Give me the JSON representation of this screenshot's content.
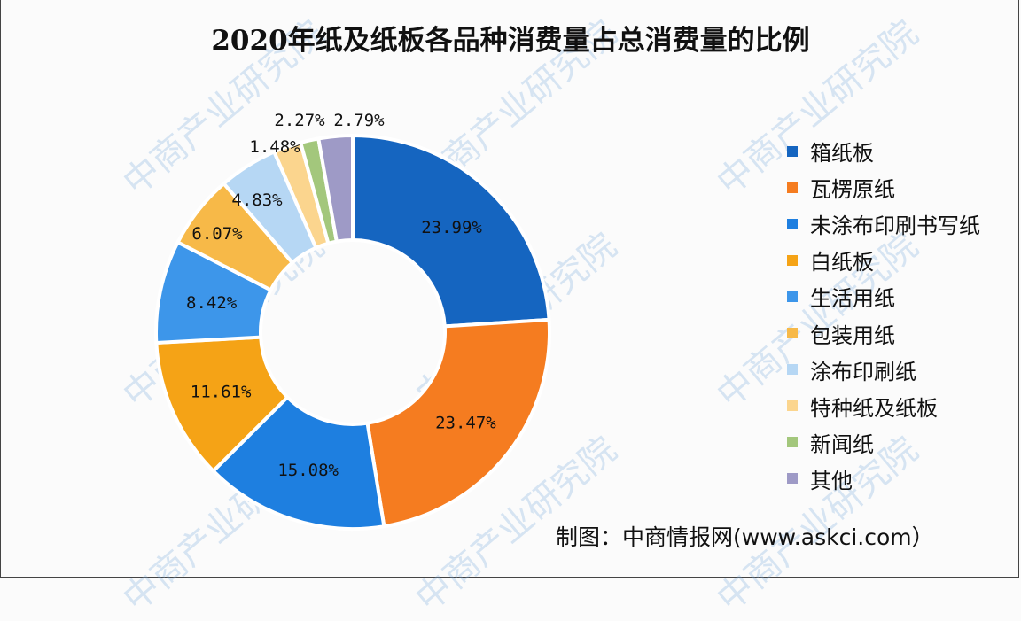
{
  "title": "2020年纸及纸板各品种消费量占总消费量的比例",
  "source": "制图：中商情报网(www.askci.com）",
  "watermark": "中商产业研究院",
  "chart_data": {
    "type": "pie",
    "variant": "donut",
    "title": "2020年纸及纸板各品种消费量占总消费量的比例",
    "start_angle": "12 o'clock, clockwise",
    "legend_position": "right",
    "categories": [
      "箱纸板",
      "瓦楞原纸",
      "未涂布印刷书写纸",
      "白纸板",
      "生活用纸",
      "包装用纸",
      "涂布印刷纸",
      "特种纸及纸板",
      "新闻纸",
      "其他"
    ],
    "values": [
      23.99,
      23.47,
      15.08,
      11.61,
      8.42,
      6.07,
      4.83,
      2.27,
      1.48,
      2.79
    ],
    "labels": [
      "23.99%",
      "23.47%",
      "15.08%",
      "11.61%",
      "8.42%",
      "6.07%",
      "4.83%",
      "2.27%",
      "1.48%",
      "2.79%"
    ],
    "colors": [
      "#1565c0",
      "#f57c20",
      "#1e7fe0",
      "#f5a316",
      "#3d96ea",
      "#f7b948",
      "#b6d7f4",
      "#fbd58e",
      "#a3c77c",
      "#9e9ac6"
    ],
    "unit": "%"
  },
  "legend": [
    {
      "label": "箱纸板",
      "color": "#1565c0"
    },
    {
      "label": "瓦楞原纸",
      "color": "#f57c20"
    },
    {
      "label": "未涂布印刷书写纸",
      "color": "#1e7fe0"
    },
    {
      "label": "白纸板",
      "color": "#f5a316"
    },
    {
      "label": "生活用纸",
      "color": "#3d96ea"
    },
    {
      "label": "包装用纸",
      "color": "#f7b948"
    },
    {
      "label": "涂布印刷纸",
      "color": "#b6d7f4"
    },
    {
      "label": "特种纸及纸板",
      "color": "#fbd58e"
    },
    {
      "label": "新闻纸",
      "color": "#a3c77c"
    },
    {
      "label": "其他",
      "color": "#9e9ac6"
    }
  ]
}
